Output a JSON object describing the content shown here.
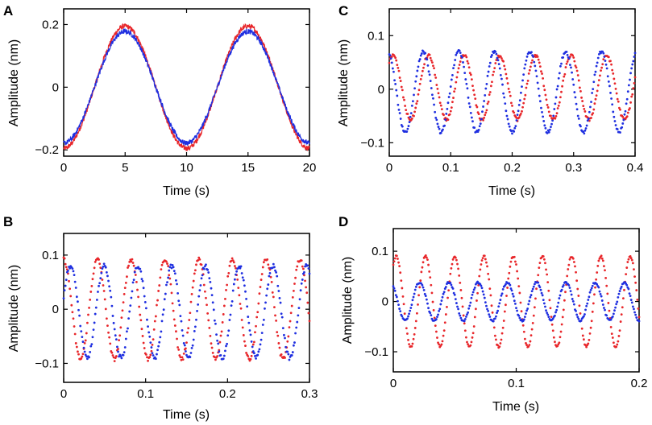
{
  "colors": {
    "red": "#e8262a",
    "blue": "#1f2fe0"
  },
  "chart_data": [
    {
      "panel": "A",
      "type": "line",
      "xlabel": "Time (s)",
      "ylabel": "Amplitude (nm)",
      "xlim": [
        0,
        20
      ],
      "ylim": [
        -0.22,
        0.25
      ],
      "xticks": [
        0,
        5,
        10,
        15,
        20
      ],
      "xtick_labels": [
        "0",
        "5",
        "10",
        "15",
        "20"
      ],
      "yticks": [
        -0.2,
        0,
        0.2
      ],
      "ytick_labels": [
        "−0.2",
        "0",
        "0.2"
      ],
      "series": [
        {
          "name": "red",
          "color": "red",
          "style": "line",
          "amplitude": 0.195,
          "period": 10,
          "phase": -0.25,
          "offset": 0.0,
          "noise": 0.008
        },
        {
          "name": "blue",
          "color": "blue",
          "style": "line",
          "amplitude": 0.178,
          "period": 10,
          "phase": -0.25,
          "offset": 0.0,
          "noise": 0.008
        }
      ]
    },
    {
      "panel": "B",
      "type": "scatter",
      "xlabel": "Time (s)",
      "ylabel": "Amplitude (nm)",
      "xlim": [
        0,
        0.3
      ],
      "ylim": [
        -0.135,
        0.14
      ],
      "xticks": [
        0,
        0.1,
        0.2,
        0.3
      ],
      "xtick_labels": [
        "0",
        "0.1",
        "0.2",
        "0.3"
      ],
      "yticks": [
        -0.1,
        0,
        0.1
      ],
      "ytick_labels": [
        "−0.1",
        "0",
        "0.1"
      ],
      "series": [
        {
          "name": "red",
          "color": "red",
          "style": "dots",
          "amplitude": 0.092,
          "period": 0.0412,
          "phase": 0.25,
          "offset": 0.0,
          "noise": 0.004
        },
        {
          "name": "blue",
          "color": "blue",
          "style": "dots",
          "amplitude": 0.085,
          "period": 0.0412,
          "phase": 0.05,
          "offset": -0.005,
          "noise": 0.004
        }
      ]
    },
    {
      "panel": "C",
      "type": "scatter",
      "xlabel": "Time (s)",
      "ylabel": "Amplitude (nm)",
      "xlim": [
        0,
        0.4
      ],
      "ylim": [
        -0.125,
        0.15
      ],
      "xticks": [
        0,
        0.1,
        0.2,
        0.3,
        0.4
      ],
      "xtick_labels": [
        "0",
        "0.1",
        "0.2",
        "0.3",
        "0.4"
      ],
      "yticks": [
        -0.1,
        0,
        0.1
      ],
      "ytick_labels": [
        "−0.1",
        "0",
        "0.1"
      ],
      "series": [
        {
          "name": "red",
          "color": "red",
          "style": "dots",
          "amplitude": 0.06,
          "period": 0.058,
          "phase": 0.15,
          "offset": 0.003,
          "noise": 0.003
        },
        {
          "name": "blue",
          "color": "blue",
          "style": "dots",
          "amplitude": 0.075,
          "period": 0.058,
          "phase": 0.3,
          "offset": -0.005,
          "noise": 0.003
        }
      ]
    },
    {
      "panel": "D",
      "type": "scatter",
      "xlabel": "Time (s)",
      "ylabel": "Amplitude (nm)",
      "xlim": [
        0,
        0.2
      ],
      "ylim": [
        -0.14,
        0.145
      ],
      "xticks": [
        0,
        0.1,
        0.2
      ],
      "xtick_labels": [
        "0",
        "0.1",
        "0.2"
      ],
      "yticks": [
        -0.1,
        0,
        0.1
      ],
      "ytick_labels": [
        "−0.1",
        "0",
        "0.1"
      ],
      "series": [
        {
          "name": "red",
          "color": "red",
          "style": "dots",
          "amplitude": 0.09,
          "period": 0.0238,
          "phase": 0.15,
          "offset": 0.0,
          "noise": 0.002
        },
        {
          "name": "blue",
          "color": "blue",
          "style": "dots",
          "amplitude": 0.038,
          "period": 0.0238,
          "phase": 0.35,
          "offset": 0.0,
          "noise": 0.002
        }
      ]
    }
  ]
}
